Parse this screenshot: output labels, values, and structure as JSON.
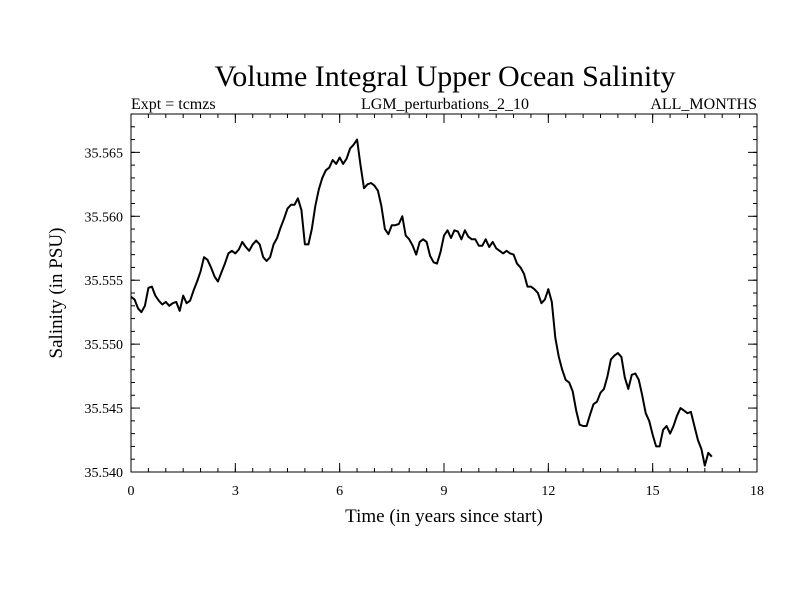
{
  "chart_data": {
    "type": "line",
    "title": "Volume Integral Upper Ocean Salinity",
    "subtitle_left": "Expt = tcmzs",
    "subtitle_center": "LGM_perturbations_2_10",
    "subtitle_right": "ALL_MONTHS",
    "xlabel": "Time (in years since start)",
    "ylabel": "Salinity (in PSU)",
    "xlim": [
      0,
      18
    ],
    "ylim": [
      35.54,
      35.568
    ],
    "xticks": [
      0,
      3,
      6,
      9,
      12,
      15,
      18
    ],
    "xtick_labels": [
      "0",
      "3",
      "6",
      "9",
      "12",
      "15",
      "18"
    ],
    "yticks": [
      35.54,
      35.545,
      35.55,
      35.555,
      35.56,
      35.565
    ],
    "ytick_labels": [
      "35.540",
      "35.545",
      "35.550",
      "35.555",
      "35.560",
      "35.565"
    ],
    "grid": false,
    "series": [
      {
        "name": "Salinity",
        "x": [
          0.0,
          0.1,
          0.2,
          0.3,
          0.4,
          0.5,
          0.6,
          0.7,
          0.8,
          0.9,
          1.0,
          1.1,
          1.2,
          1.3,
          1.4,
          1.5,
          1.6,
          1.7,
          1.8,
          1.9,
          2.0,
          2.1,
          2.2,
          2.3,
          2.4,
          2.5,
          2.6,
          2.7,
          2.8,
          2.9,
          3.0,
          3.1,
          3.2,
          3.3,
          3.4,
          3.5,
          3.6,
          3.7,
          3.8,
          3.9,
          4.0,
          4.1,
          4.2,
          4.3,
          4.4,
          4.5,
          4.6,
          4.7,
          4.8,
          4.9,
          5.0,
          5.1,
          5.2,
          5.3,
          5.4,
          5.5,
          5.6,
          5.7,
          5.8,
          5.9,
          6.0,
          6.1,
          6.2,
          6.3,
          6.4,
          6.5,
          6.6,
          6.7,
          6.8,
          6.9,
          7.0,
          7.1,
          7.2,
          7.3,
          7.4,
          7.5,
          7.6,
          7.7,
          7.8,
          7.9,
          8.0,
          8.1,
          8.2,
          8.3,
          8.4,
          8.5,
          8.6,
          8.7,
          8.8,
          8.9,
          9.0,
          9.1,
          9.2,
          9.3,
          9.4,
          9.5,
          9.6,
          9.7,
          9.8,
          9.9,
          10.0,
          10.1,
          10.2,
          10.3,
          10.4,
          10.5,
          10.6,
          10.7,
          10.8,
          10.9,
          11.0,
          11.1,
          11.2,
          11.3,
          11.4,
          11.5,
          11.6,
          11.7,
          11.8,
          11.9,
          12.0,
          12.1,
          12.2,
          12.3,
          12.4,
          12.5,
          12.6,
          12.7,
          12.8,
          12.9,
          13.0,
          13.1,
          13.2,
          13.3,
          13.4,
          13.5,
          13.6,
          13.7,
          13.8,
          13.9,
          14.0,
          14.1,
          14.2,
          14.3,
          14.4,
          14.5,
          14.6,
          14.7,
          14.8,
          14.9,
          15.0,
          15.1,
          15.2,
          15.3,
          15.4,
          15.5,
          15.6,
          15.7,
          15.8,
          15.9,
          16.0,
          16.1,
          16.2,
          16.3,
          16.4,
          16.5,
          16.6,
          16.7
        ],
        "y": [
          35.5537,
          35.5535,
          35.5528,
          35.5525,
          35.553,
          35.5544,
          35.5545,
          35.5538,
          35.5534,
          35.5531,
          35.5533,
          35.553,
          35.5532,
          35.5533,
          35.5526,
          35.5538,
          35.5532,
          35.5534,
          35.5542,
          35.5549,
          35.5557,
          35.5568,
          35.5566,
          35.556,
          35.5553,
          35.5549,
          35.5556,
          35.5563,
          35.5571,
          35.5573,
          35.5571,
          35.5574,
          35.558,
          35.5576,
          35.5573,
          35.5578,
          35.5581,
          35.5578,
          35.5568,
          35.5565,
          35.5568,
          35.5578,
          35.5583,
          35.5591,
          35.5598,
          35.5606,
          35.5609,
          35.5609,
          35.5614,
          35.5605,
          35.5578,
          35.5578,
          35.559,
          35.5608,
          35.5621,
          35.563,
          35.5636,
          35.5638,
          35.5644,
          35.5641,
          35.5646,
          35.5641,
          35.5645,
          35.5653,
          35.5656,
          35.566,
          35.564,
          35.5622,
          35.5625,
          35.5626,
          35.5624,
          35.562,
          35.5608,
          35.559,
          35.5586,
          35.5593,
          35.5593,
          35.5594,
          35.56,
          35.5585,
          35.5582,
          35.5577,
          35.557,
          35.558,
          35.5582,
          35.558,
          35.5569,
          35.5564,
          35.5563,
          35.5572,
          35.5585,
          35.5589,
          35.5583,
          35.5589,
          35.5588,
          35.5582,
          35.5589,
          35.5584,
          35.5582,
          35.5582,
          35.5577,
          35.5577,
          35.5582,
          35.5576,
          35.558,
          35.5575,
          35.5573,
          35.5571,
          35.5573,
          35.5571,
          35.557,
          35.5563,
          35.556,
          35.5555,
          35.5545,
          35.5545,
          35.5543,
          35.554,
          35.5532,
          35.5535,
          35.5543,
          35.5533,
          35.5505,
          35.549,
          35.548,
          35.5472,
          35.547,
          35.5463,
          35.5448,
          35.5437,
          35.5436,
          35.5436,
          35.5445,
          35.5453,
          35.5455,
          35.5462,
          35.5465,
          35.5475,
          35.5488,
          35.5491,
          35.5493,
          35.549,
          35.5474,
          35.5465,
          35.5476,
          35.5477,
          35.5472,
          35.546,
          35.5446,
          35.544,
          35.5429,
          35.542,
          35.542,
          35.5433,
          35.5436,
          35.543,
          35.5436,
          35.5444,
          35.545,
          35.5448,
          35.5446,
          35.5447,
          35.5436,
          35.5425,
          35.5418,
          35.5405,
          35.5415,
          35.5412
        ]
      }
    ]
  }
}
